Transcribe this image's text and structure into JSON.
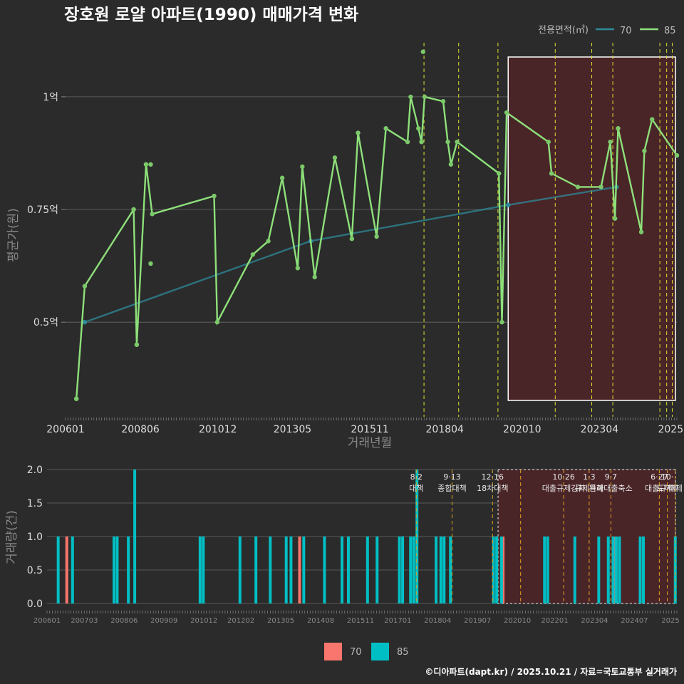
{
  "chart_data": [
    {
      "type": "line",
      "title": "장호원 로얄 아파트(1990) 매매가격 변화",
      "xlabel": "거래년월",
      "ylabel": "평균가(원)",
      "x_ticks": [
        "200601",
        "200806",
        "201012",
        "201305",
        "201511",
        "201804",
        "202010",
        "202304",
        "2025"
      ],
      "y_ticks": [
        "0.5억",
        "0.75억",
        "1억"
      ],
      "y_tick_values": [
        0.5,
        0.75,
        1.0
      ],
      "ylim": [
        0.29,
        1.12
      ],
      "xlim": [
        2006.0,
        2025.75
      ],
      "legend_title": "전용면적(㎡)",
      "legend_items": [
        "70",
        "85"
      ],
      "series": [
        {
          "name": "70",
          "color": "#2e8b9a",
          "points": [
            [
              2006.62,
              0.5
            ],
            [
              2013.92,
              0.68
            ],
            [
              2020.3,
              0.76
            ],
            [
              2023.8,
              0.8
            ]
          ]
        },
        {
          "name": "85",
          "color": "#8ee07a",
          "points": [
            [
              2006.35,
              0.33
            ],
            [
              2006.62,
              0.58
            ],
            [
              2008.2,
              0.75
            ],
            [
              2008.3,
              0.45
            ],
            [
              2008.6,
              0.85
            ],
            [
              2008.8,
              0.74
            ],
            [
              2010.8,
              0.78
            ],
            [
              2010.9,
              0.5
            ],
            [
              2012.05,
              0.65
            ],
            [
              2012.55,
              0.68
            ],
            [
              2013.0,
              0.82
            ],
            [
              2013.5,
              0.62
            ],
            [
              2013.65,
              0.845
            ],
            [
              2014.05,
              0.6
            ],
            [
              2014.7,
              0.865
            ],
            [
              2015.25,
              0.685
            ],
            [
              2015.45,
              0.92
            ],
            [
              2016.05,
              0.69
            ],
            [
              2016.35,
              0.93
            ],
            [
              2017.05,
              0.9
            ],
            [
              2017.15,
              1.0
            ],
            [
              2017.4,
              0.93
            ],
            [
              2017.5,
              0.9
            ],
            [
              2017.6,
              1.0
            ],
            [
              2018.2,
              0.99
            ],
            [
              2018.35,
              0.9
            ],
            [
              2018.45,
              0.85
            ],
            [
              2018.65,
              0.9
            ],
            [
              2020.0,
              0.83
            ],
            [
              2020.1,
              0.5
            ],
            [
              2020.25,
              0.965
            ],
            [
              2021.6,
              0.9
            ],
            [
              2021.7,
              0.83
            ],
            [
              2022.55,
              0.8
            ],
            [
              2023.3,
              0.8
            ],
            [
              2023.6,
              0.9
            ],
            [
              2023.75,
              0.73
            ],
            [
              2023.85,
              0.93
            ],
            [
              2024.6,
              0.7
            ],
            [
              2024.7,
              0.88
            ],
            [
              2024.95,
              0.95
            ],
            [
              2025.75,
              0.87
            ]
          ]
        }
      ],
      "scatter_85": [
        [
          2006.35,
          0.33
        ],
        [
          2008.2,
          0.75
        ],
        [
          2008.3,
          0.45
        ],
        [
          2008.6,
          0.85
        ],
        [
          2008.75,
          0.85
        ],
        [
          2008.75,
          0.63
        ],
        [
          2017.55,
          1.1
        ],
        [
          2017.5,
          0.9
        ]
      ],
      "event_years": [
        2017.58,
        2018.7,
        2019.97,
        2021.82,
        2023.0,
        2023.68,
        2025.2,
        2025.42,
        2025.6
      ],
      "highlight_range": [
        2020.3,
        2025.75
      ]
    },
    {
      "type": "bar",
      "xlabel": "",
      "ylabel": "거래량(건)",
      "x_ticks": [
        "200601",
        "200703",
        "200806",
        "200909",
        "201012",
        "201202",
        "201305",
        "201408",
        "201511",
        "201701",
        "201804",
        "201907",
        "202010",
        "202201",
        "202304",
        "202407",
        "2025"
      ],
      "y_ticks": [
        "0.0",
        "0.5",
        "1.0",
        "1.5",
        "2.0"
      ],
      "ylim": [
        0,
        2
      ],
      "legend_items": [
        "70",
        "85"
      ],
      "series": [
        {
          "name": "70",
          "color": "#f8766d",
          "x": [
            2006.62,
            2013.92,
            2020.3,
            2023.8
          ],
          "values": [
            1,
            1,
            1,
            1
          ]
        },
        {
          "name": "85",
          "color": "#00bfc4",
          "x": [
            2006.35,
            2006.8,
            2008.1,
            2008.2,
            2008.55,
            2008.75,
            2010.8,
            2010.9,
            2012.05,
            2012.55,
            2013.0,
            2013.5,
            2013.65,
            2014.05,
            2014.7,
            2015.25,
            2015.45,
            2016.05,
            2016.35,
            2017.05,
            2017.15,
            2017.4,
            2017.5,
            2017.6,
            2018.2,
            2018.35,
            2018.45,
            2018.65,
            2020.0,
            2020.1,
            2020.25,
            2021.6,
            2021.7,
            2022.55,
            2023.3,
            2023.6,
            2023.75,
            2023.85,
            2023.95,
            2024.6,
            2024.7,
            2025.7
          ],
          "values": [
            1,
            1,
            1,
            1,
            1,
            2,
            1,
            1,
            1,
            1,
            1,
            1,
            1,
            1,
            1,
            1,
            1,
            1,
            1,
            1,
            1,
            1,
            1,
            2,
            1,
            1,
            1,
            1,
            1,
            1,
            1,
            1,
            1,
            1,
            1,
            1,
            1,
            1,
            1,
            1,
            1,
            1
          ]
        }
      ],
      "events": [
        {
          "year": 2017.58,
          "date": "8·2",
          "name": "대책"
        },
        {
          "year": 2018.7,
          "date": "9·13",
          "name": "종합대책"
        },
        {
          "year": 2019.97,
          "date": "12·16",
          "name": "18차대책"
        },
        {
          "year": 2020.85,
          "date": "",
          "name": ""
        },
        {
          "year": 2022.2,
          "date": "10·26",
          "name": "대출규제강화"
        },
        {
          "year": 2023.0,
          "date": "1·3",
          "name": "규제완화"
        },
        {
          "year": 2023.68,
          "date": "9·7",
          "name": "특례대출축소"
        },
        {
          "year": 2025.2,
          "date": "6·27",
          "name": "대출규제"
        },
        {
          "year": 2025.45,
          "date": "10·",
          "name": "토허제"
        },
        {
          "year": 2025.7,
          "date": "",
          "name": "해제"
        }
      ],
      "highlight_range": [
        2020.3,
        2025.75
      ]
    }
  ],
  "footer": "©디아파트(dapt.kr) / 2025.10.21 / 자료=국토교통부 실거래가"
}
